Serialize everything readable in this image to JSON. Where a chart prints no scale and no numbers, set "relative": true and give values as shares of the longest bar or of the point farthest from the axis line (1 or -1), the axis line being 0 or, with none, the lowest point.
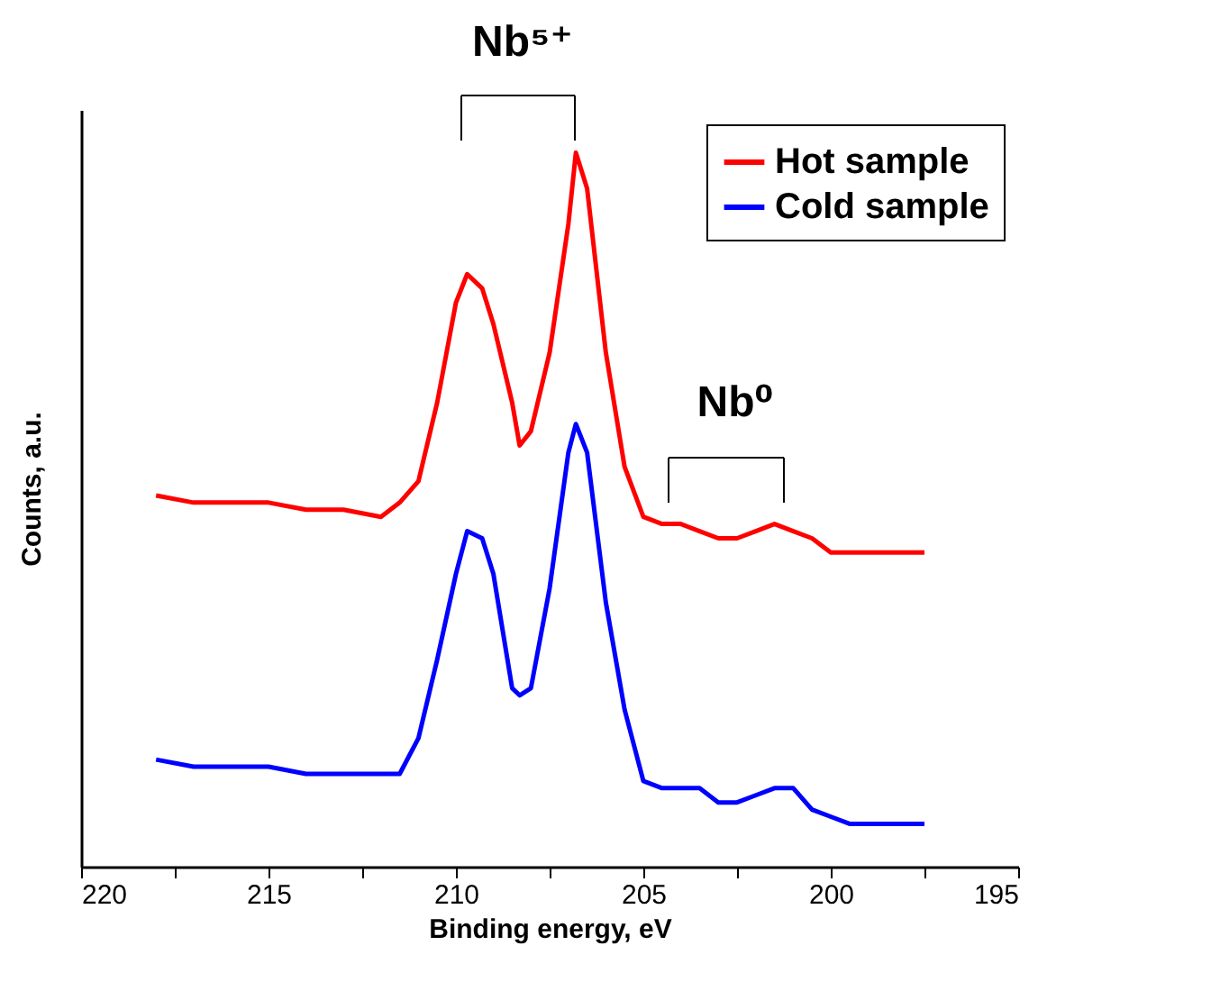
{
  "chart_data": {
    "type": "line",
    "xlabel": "Binding energy, eV",
    "ylabel": "Counts, a.u.",
    "relative": true,
    "x": [
      218,
      217,
      216,
      215,
      214,
      213,
      212,
      211.5,
      211,
      210.5,
      210,
      209.7,
      209.3,
      209,
      208.5,
      208.3,
      208,
      207.5,
      207,
      206.8,
      206.5,
      206,
      205.5,
      205,
      204.5,
      204,
      203.5,
      203,
      202.5,
      202,
      201.5,
      201,
      200.5,
      200,
      199.5,
      199,
      198,
      197.5
    ],
    "series": [
      {
        "name": "Hot sample",
        "color": "#ff0000",
        "values": [
          0.52,
          0.51,
          0.51,
          0.51,
          0.5,
          0.5,
          0.49,
          0.51,
          0.54,
          0.65,
          0.79,
          0.83,
          0.81,
          0.76,
          0.65,
          0.59,
          0.61,
          0.72,
          0.9,
          1.0,
          0.95,
          0.72,
          0.56,
          0.49,
          0.48,
          0.48,
          0.47,
          0.46,
          0.46,
          0.47,
          0.48,
          0.47,
          0.46,
          0.44,
          0.44,
          0.44,
          0.44,
          0.44
        ]
      },
      {
        "name": "Cold sample",
        "color": "#0000ff",
        "values": [
          0.15,
          0.14,
          0.14,
          0.14,
          0.13,
          0.13,
          0.13,
          0.13,
          0.18,
          0.29,
          0.41,
          0.47,
          0.46,
          0.41,
          0.25,
          0.24,
          0.25,
          0.39,
          0.58,
          0.62,
          0.58,
          0.37,
          0.22,
          0.12,
          0.11,
          0.11,
          0.11,
          0.09,
          0.09,
          0.1,
          0.11,
          0.11,
          0.08,
          0.07,
          0.06,
          0.06,
          0.06,
          0.06
        ]
      }
    ],
    "xlim": [
      220,
      195
    ],
    "xticks": [
      220,
      {
        "value": 217.5,
        "label": null
      },
      215,
      {
        "value": 212.5,
        "label": null
      },
      210,
      {
        "value": 207.5,
        "label": null
      },
      205,
      {
        "value": 202.5,
        "label": null
      },
      200,
      {
        "value": 197.5,
        "label": null
      },
      195
    ],
    "annotations": [
      "Nb⁵⁺",
      "Nb⁰"
    ],
    "legend": "top right",
    "grid": false,
    "tick_labels": "x",
    "line_style": "solid",
    "marker": "none"
  }
}
